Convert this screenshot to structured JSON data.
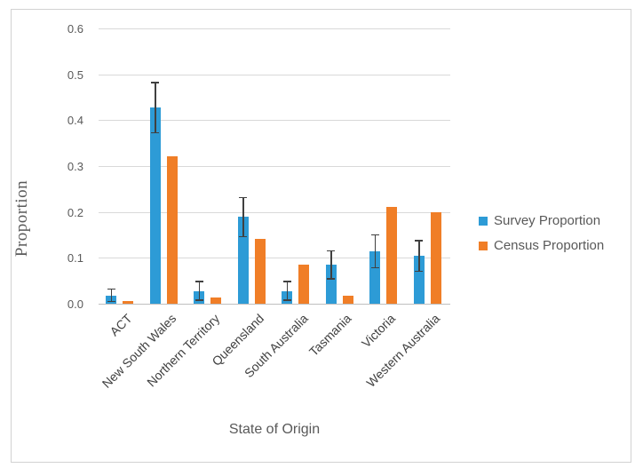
{
  "chart_data": {
    "type": "bar",
    "title": "",
    "xlabel": "State of Origin",
    "ylabel": "Proportion",
    "categories": [
      "ACT",
      "New South Wales",
      "Northern Territory",
      "Queensland",
      "South Australia",
      "Tasmania",
      "Victoria",
      "Western Australia"
    ],
    "series": [
      {
        "name": "Survey Proportion",
        "color": "#2d9bd6",
        "values": [
          0.018,
          0.427,
          0.028,
          0.189,
          0.028,
          0.085,
          0.114,
          0.104
        ],
        "error_bars": [
          0.015,
          0.056,
          0.022,
          0.044,
          0.022,
          0.032,
          0.037,
          0.035
        ]
      },
      {
        "name": "Census Proportion",
        "color": "#f07e27",
        "values": [
          0.005,
          0.321,
          0.013,
          0.141,
          0.085,
          0.018,
          0.211,
          0.2
        ]
      }
    ],
    "ylim": [
      0,
      0.6
    ],
    "yticks": [
      0.0,
      0.1,
      0.2,
      0.3,
      0.4,
      0.5,
      0.6
    ],
    "ytick_format_decimals": 1,
    "grid": true,
    "legend_position": "right",
    "colors": {
      "gridline": "#d9d9d9",
      "axis_line": "#bfbfbf",
      "error_bar": "#404040",
      "tick_label": "#595959",
      "category_label": "#404040",
      "title_text": "#595959"
    }
  }
}
